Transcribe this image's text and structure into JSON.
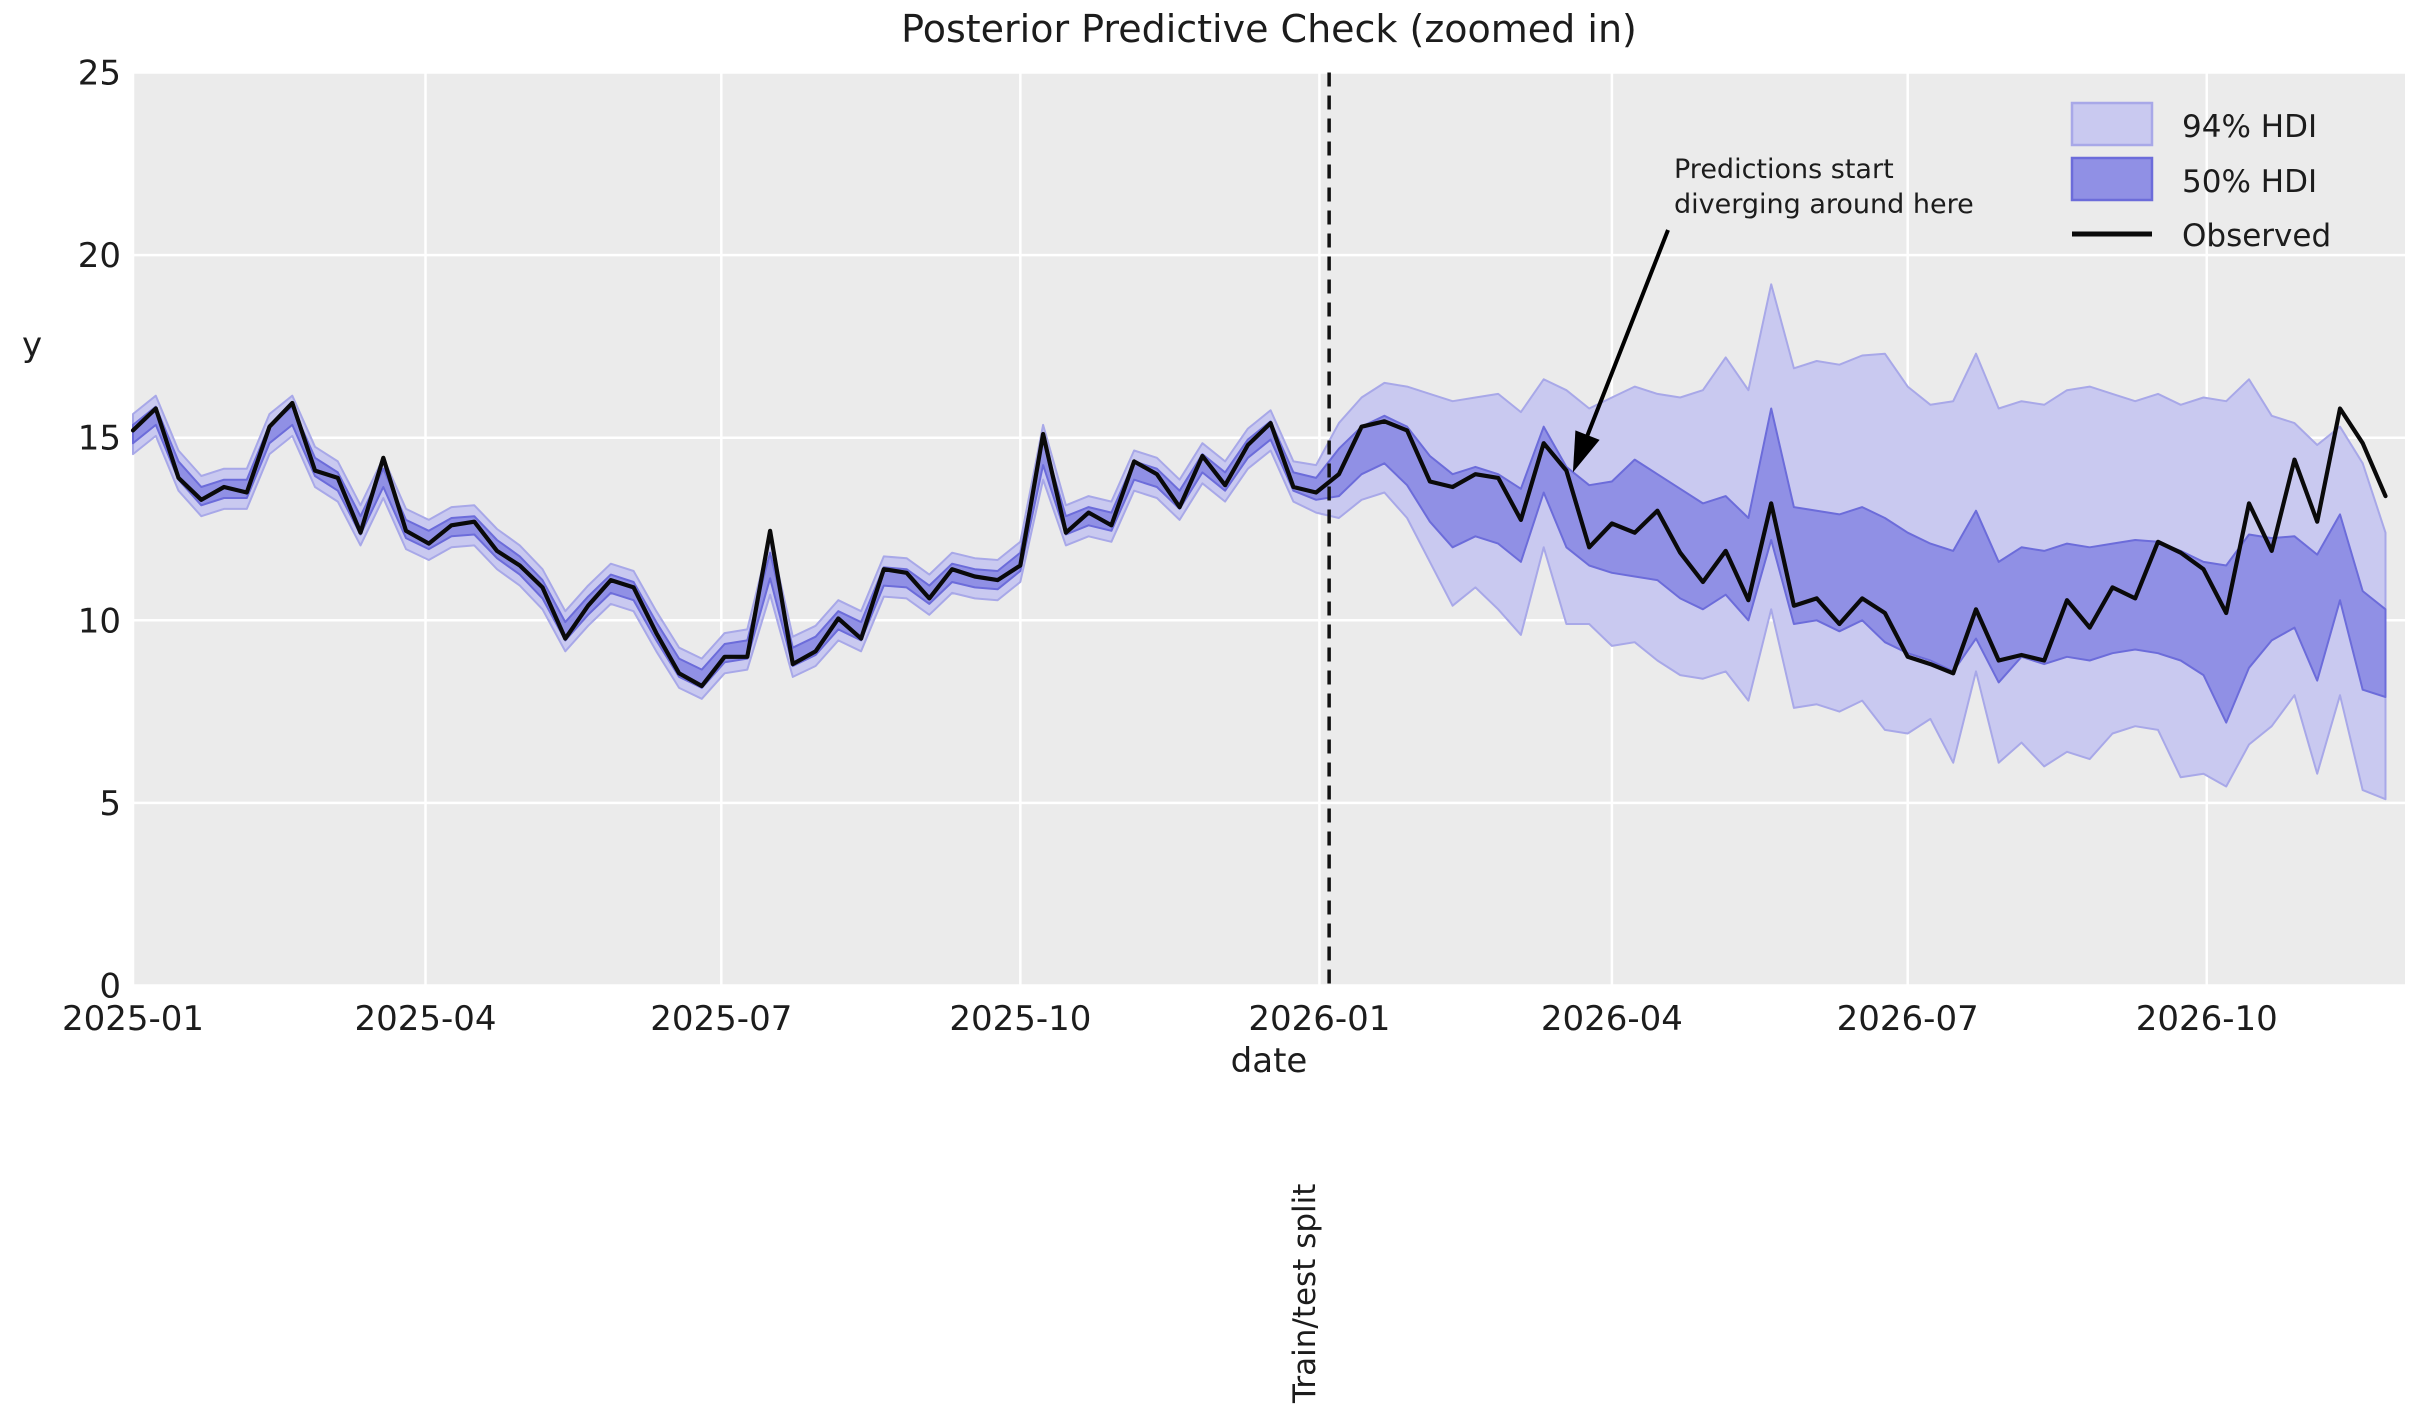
{
  "title": "Posterior Predictive Check (zoomed in)",
  "axis": {
    "xlabel": "date",
    "ylabel": "y"
  },
  "legend": {
    "hdi94_label": "94% HDI",
    "hdi50_label": "50% HDI",
    "observed_label": "Observed"
  },
  "annotation": {
    "line1": "Predictions start",
    "line2": "diverging around here",
    "target_date": "2026-03-20",
    "target_y": 14.05
  },
  "split_line_label": "Train/test split",
  "colors": {
    "plot_bg": "#ebebeb",
    "grid": "#ffffff",
    "hdi94_fill": "#c9c9f0",
    "hdi94_edge": "#a8a8e8",
    "hdi50_fill": "#9090e5",
    "hdi50_edge": "#6c6cda",
    "observed": "#0a0a0a",
    "split_line": "#111111",
    "text": "#1c1c1c"
  },
  "chart_data": {
    "type": "line",
    "title": "Posterior Predictive Check (zoomed in)",
    "xlabel": "date",
    "ylabel": "y",
    "ylim": [
      0,
      25
    ],
    "xlim": [
      "2025-01-01",
      "2026-12-01"
    ],
    "grid": true,
    "legend_position": "upper right",
    "x_start_date": "2025-01-01",
    "x_step_days": 7,
    "split_date": "2026-01-04",
    "yticks": [
      0,
      5,
      10,
      15,
      20,
      25
    ],
    "xticks": [
      {
        "date": "2025-01-01",
        "label": "2025-01"
      },
      {
        "date": "2025-04-01",
        "label": "2025-04"
      },
      {
        "date": "2025-07-01",
        "label": "2025-07"
      },
      {
        "date": "2025-10-01",
        "label": "2025-10"
      },
      {
        "date": "2026-01-01",
        "label": "2026-01"
      },
      {
        "date": "2026-04-01",
        "label": "2026-04"
      },
      {
        "date": "2026-07-01",
        "label": "2026-07"
      },
      {
        "date": "2026-10-01",
        "label": "2026-10"
      }
    ],
    "series": [
      {
        "name": "Observed",
        "values": [
          15.2,
          15.8,
          13.9,
          13.3,
          13.65,
          13.5,
          15.3,
          15.95,
          14.1,
          13.9,
          12.4,
          14.45,
          12.45,
          12.1,
          12.6,
          12.7,
          11.9,
          11.5,
          10.9,
          9.5,
          10.4,
          11.1,
          10.9,
          9.65,
          8.55,
          8.2,
          9.0,
          9.0,
          12.45,
          8.8,
          9.15,
          10.05,
          9.5,
          11.4,
          11.3,
          10.6,
          11.4,
          11.2,
          11.1,
          11.5,
          15.1,
          12.4,
          12.95,
          12.6,
          14.35,
          14.0,
          13.1,
          14.5,
          13.7,
          14.8,
          15.4,
          13.65,
          13.5,
          14.0,
          15.3,
          15.45,
          15.2,
          13.8,
          13.65,
          14.0,
          13.9,
          12.75,
          14.85,
          14.1,
          12.0,
          12.65,
          12.4,
          13.0,
          11.85,
          11.05,
          11.9,
          10.55,
          13.2,
          10.4,
          10.6,
          9.9,
          10.6,
          10.2,
          9.0,
          8.8,
          8.55,
          10.3,
          8.9,
          9.05,
          8.9,
          10.55,
          9.8,
          10.9,
          10.6,
          12.15,
          11.85,
          11.4,
          10.2,
          13.2,
          11.9,
          14.4,
          12.7,
          15.8,
          14.85,
          13.4
        ]
      },
      {
        "name": "hdi94_lo",
        "values": [
          14.55,
          15.05,
          13.55,
          12.85,
          13.05,
          13.05,
          14.55,
          15.05,
          13.65,
          13.25,
          12.05,
          13.35,
          11.95,
          11.65,
          12.0,
          12.05,
          11.4,
          10.95,
          10.3,
          9.15,
          9.85,
          10.45,
          10.25,
          9.15,
          8.15,
          7.85,
          8.55,
          8.65,
          10.7,
          8.45,
          8.75,
          9.45,
          9.15,
          10.65,
          10.6,
          10.15,
          10.75,
          10.6,
          10.55,
          11.05,
          13.85,
          12.05,
          12.3,
          12.15,
          13.55,
          13.35,
          12.75,
          13.75,
          13.25,
          14.15,
          14.65,
          13.25,
          12.95,
          12.8,
          13.3,
          13.5,
          12.8,
          11.6,
          10.4,
          10.9,
          10.3,
          9.6,
          12.0,
          9.9,
          9.9,
          9.3,
          9.4,
          8.9,
          8.5,
          8.4,
          8.6,
          7.8,
          10.3,
          7.6,
          7.7,
          7.5,
          7.8,
          7.0,
          6.9,
          7.3,
          6.1,
          8.6,
          6.1,
          6.65,
          6.0,
          6.4,
          6.2,
          6.9,
          7.1,
          7.0,
          5.7,
          5.8,
          5.45,
          6.6,
          7.1,
          7.95,
          5.8,
          7.95,
          5.35,
          5.1
        ]
      },
      {
        "name": "hdi94_hi",
        "values": [
          15.65,
          16.15,
          14.65,
          13.95,
          14.15,
          14.15,
          15.65,
          16.15,
          14.75,
          14.35,
          13.15,
          14.45,
          13.05,
          12.75,
          13.1,
          13.15,
          12.5,
          12.05,
          11.4,
          10.25,
          10.95,
          11.55,
          11.35,
          10.25,
          9.25,
          8.95,
          9.65,
          9.75,
          12.3,
          9.55,
          9.85,
          10.55,
          10.25,
          11.75,
          11.7,
          11.25,
          11.85,
          11.7,
          11.65,
          12.15,
          15.35,
          13.15,
          13.4,
          13.25,
          14.65,
          14.45,
          13.85,
          14.85,
          14.35,
          15.25,
          15.75,
          14.35,
          14.25,
          15.4,
          16.1,
          16.5,
          16.4,
          16.2,
          16.0,
          16.1,
          16.2,
          15.7,
          16.6,
          16.3,
          15.8,
          16.1,
          16.4,
          16.2,
          16.1,
          16.3,
          17.2,
          16.3,
          19.2,
          16.9,
          17.1,
          17.0,
          17.25,
          17.3,
          16.4,
          15.9,
          16.0,
          17.3,
          15.8,
          16.0,
          15.9,
          16.3,
          16.4,
          16.2,
          16.0,
          16.2,
          15.9,
          16.1,
          16.0,
          16.6,
          15.6,
          15.4,
          14.8,
          15.3,
          14.3,
          12.4
        ]
      },
      {
        "name": "hdi50_lo",
        "values": [
          14.85,
          15.35,
          13.85,
          13.15,
          13.35,
          13.35,
          14.85,
          15.35,
          13.95,
          13.55,
          12.35,
          13.65,
          12.25,
          11.95,
          12.3,
          12.35,
          11.7,
          11.25,
          10.6,
          9.45,
          10.15,
          10.75,
          10.55,
          9.45,
          8.45,
          8.15,
          8.85,
          8.95,
          11.15,
          8.75,
          9.05,
          9.75,
          9.45,
          10.95,
          10.9,
          10.45,
          11.05,
          10.9,
          10.85,
          11.35,
          14.25,
          12.35,
          12.6,
          12.45,
          13.85,
          13.65,
          13.05,
          14.05,
          13.55,
          14.45,
          14.95,
          13.55,
          13.3,
          13.4,
          14.0,
          14.3,
          13.7,
          12.7,
          12.0,
          12.3,
          12.1,
          11.6,
          13.5,
          12.0,
          11.5,
          11.3,
          11.2,
          11.1,
          10.6,
          10.3,
          10.7,
          10.0,
          12.2,
          9.9,
          10.0,
          9.7,
          10.0,
          9.4,
          9.1,
          8.9,
          8.6,
          9.5,
          8.3,
          9.0,
          8.8,
          9.0,
          8.9,
          9.1,
          9.2,
          9.1,
          8.9,
          8.5,
          7.2,
          8.7,
          9.45,
          9.8,
          8.35,
          10.55,
          8.1,
          7.9
        ]
      },
      {
        "name": "hdi50_hi",
        "values": [
          15.35,
          15.85,
          14.35,
          13.65,
          13.85,
          13.85,
          15.35,
          15.85,
          14.45,
          14.05,
          12.85,
          14.15,
          12.75,
          12.45,
          12.8,
          12.85,
          12.2,
          11.75,
          11.1,
          9.95,
          10.65,
          11.25,
          11.05,
          9.95,
          8.95,
          8.65,
          9.35,
          9.45,
          11.85,
          9.25,
          9.55,
          10.25,
          9.95,
          11.45,
          11.4,
          10.95,
          11.55,
          11.4,
          11.35,
          11.85,
          14.95,
          12.85,
          13.1,
          12.95,
          14.35,
          14.15,
          13.55,
          14.55,
          14.05,
          14.95,
          15.45,
          14.05,
          13.9,
          14.7,
          15.3,
          15.6,
          15.3,
          14.5,
          14.0,
          14.2,
          14.0,
          13.6,
          15.3,
          14.2,
          13.7,
          13.8,
          14.4,
          14.0,
          13.6,
          13.2,
          13.4,
          12.8,
          15.8,
          13.1,
          13.0,
          12.9,
          13.1,
          12.8,
          12.4,
          12.1,
          11.9,
          13.0,
          11.6,
          12.0,
          11.9,
          12.1,
          12.0,
          12.1,
          12.2,
          12.15,
          11.9,
          11.6,
          11.5,
          12.35,
          12.25,
          12.3,
          11.8,
          12.9,
          10.8,
          10.3
        ]
      }
    ]
  }
}
